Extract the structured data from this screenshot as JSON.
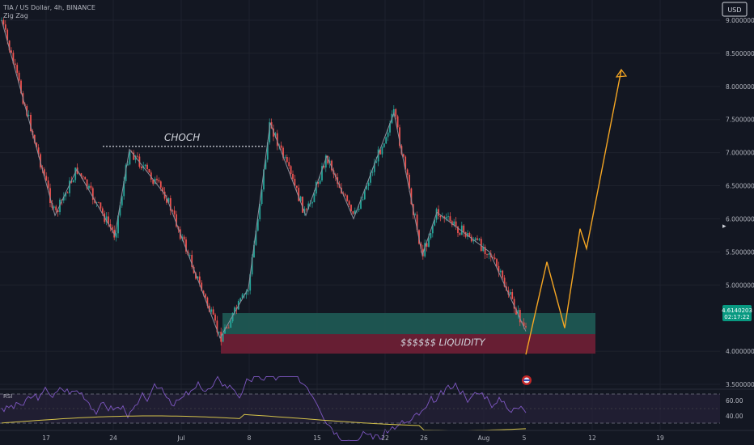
{
  "header": {
    "symbol": "TIA / US Dollar, 4h, BINANCE",
    "indicator": "Zig Zag",
    "currency_button": "USD"
  },
  "price_axis": {
    "labels": [
      "9.0000000",
      "8.5000000",
      "8.0000000",
      "7.5000000",
      "7.0000000",
      "6.5000000",
      "6.0000000",
      "5.5000000",
      "5.0000000",
      "4.0000000",
      "3.5000000"
    ],
    "values": [
      9.0,
      8.5,
      8.0,
      7.5,
      7.0,
      6.5,
      6.0,
      5.5,
      5.0,
      4.0,
      3.5
    ],
    "last_price": "4.6140203",
    "countdown": "02:17:22"
  },
  "time_axis": {
    "labels": [
      "17",
      "24",
      "Jul",
      "8",
      "15",
      "22",
      "26",
      "Aug",
      "5",
      "12",
      "19"
    ]
  },
  "annotations": {
    "choch": "CHOCH",
    "liquidity": "$$$$$$ LIQUIDITY"
  },
  "rsi": {
    "label": "RSI",
    "levels": [
      "60.00",
      "40.00"
    ]
  },
  "colors": {
    "up": "#26a69a",
    "down": "#ef5350",
    "projection": "#f5a623",
    "demand_zone": "#1f5b55",
    "liquidity_zone": "#6b1f35",
    "rsi_line": "#7e57c2",
    "rsi_ma": "#d4c24a"
  },
  "chart_data": {
    "type": "candlestick",
    "y_range": [
      3.4,
      9.2
    ],
    "zigzag": [
      9.0,
      6.05,
      6.75,
      5.75,
      7.05,
      6.35,
      4.2,
      4.95,
      7.45,
      6.05,
      6.95,
      6.0,
      7.6,
      5.45,
      6.1,
      5.5,
      4.3
    ],
    "projection": [
      3.95,
      5.35,
      4.35,
      5.85,
      5.55,
      8.25
    ],
    "demand_zone": [
      4.25,
      4.55
    ],
    "liquidity_zone": [
      3.95,
      4.25
    ],
    "choch_level": 7.1,
    "rsi_ma_value": 40
  }
}
